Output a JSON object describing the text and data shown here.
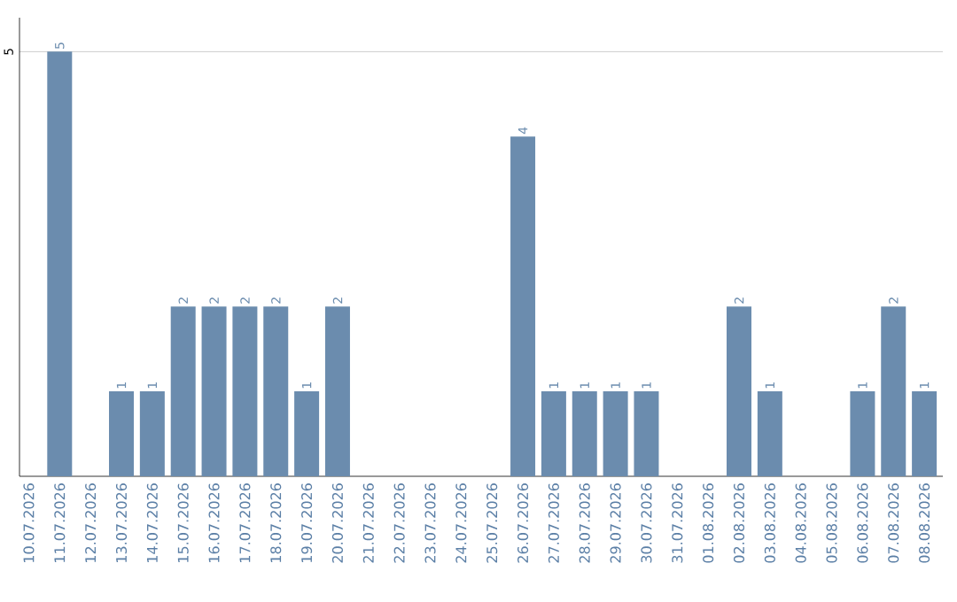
{
  "chart_data": {
    "type": "bar",
    "categories": [
      "10.07.2026",
      "11.07.2026",
      "12.07.2026",
      "13.07.2026",
      "14.07.2026",
      "15.07.2026",
      "16.07.2026",
      "17.07.2026",
      "18.07.2026",
      "19.07.2026",
      "20.07.2026",
      "21.07.2026",
      "22.07.2026",
      "23.07.2026",
      "24.07.2026",
      "25.07.2026",
      "26.07.2026",
      "27.07.2026",
      "28.07.2026",
      "29.07.2026",
      "30.07.2026",
      "31.07.2026",
      "01.08.2026",
      "02.08.2026",
      "03.08.2026",
      "04.08.2026",
      "05.08.2026",
      "06.08.2026",
      "07.08.2026",
      "08.08.2026"
    ],
    "values": [
      0,
      5,
      0,
      1,
      1,
      2,
      2,
      2,
      2,
      1,
      2,
      0,
      0,
      0,
      0,
      0,
      4,
      1,
      1,
      1,
      1,
      0,
      0,
      2,
      1,
      0,
      0,
      1,
      2,
      1
    ],
    "value_labels": [
      null,
      "5",
      null,
      "1",
      "1",
      "2",
      "2",
      "2",
      "2",
      "1",
      "2",
      null,
      null,
      null,
      null,
      null,
      "4",
      "1",
      "1",
      "1",
      "1",
      null,
      null,
      "2",
      "1",
      null,
      null,
      "1",
      "2",
      "1"
    ],
    "color": "#6b8cae",
    "ylim": [
      0,
      5.4
    ],
    "yticks": [
      5
    ],
    "grid": "y"
  }
}
